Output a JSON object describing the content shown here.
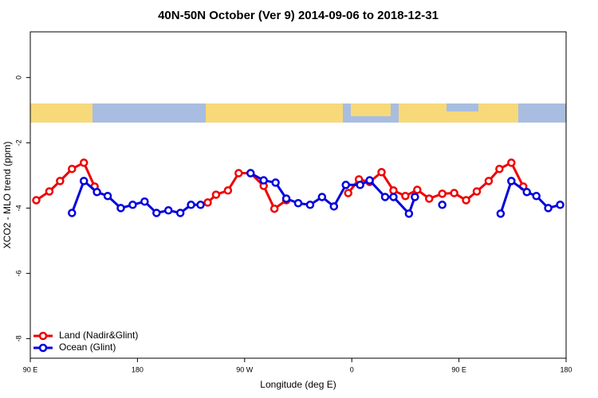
{
  "chart_data": {
    "type": "line",
    "title": "40N-50N October (Ver 9)   2014-09-06 to 2018-12-31",
    "xlabel": "Longitude (deg E)",
    "ylabel": "XCO2 - MLO trend (ppm)",
    "xlim": [
      90,
      540
    ],
    "ylim": [
      -8.6,
      1.4
    ],
    "xticks": [
      {
        "value": 90,
        "label": "90 E"
      },
      180,
      {
        "value": 270,
        "label": "90 W"
      },
      {
        "value": 360,
        "label": "0"
      },
      {
        "value": 450,
        "label": "90 E"
      },
      {
        "value": 540,
        "label": "180"
      }
    ],
    "yticks": [
      0,
      -2,
      -4,
      -6,
      -8
    ],
    "legend": "bottom-left",
    "series": [
      {
        "name": "Land (Nadir&Glint)",
        "color": "#ee0000",
        "x": [
          95,
          106,
          115,
          125,
          135,
          144,
          null,
          239,
          246,
          256,
          265,
          275,
          286,
          295,
          305,
          null,
          357,
          366,
          375,
          385,
          395,
          405,
          415,
          425,
          436,
          446,
          456,
          465,
          475,
          484,
          494,
          504
        ],
        "values": [
          -3.76,
          -3.49,
          -3.17,
          -2.8,
          -2.61,
          -3.34,
          null,
          -3.83,
          -3.59,
          -3.46,
          -2.93,
          -2.93,
          -3.32,
          -4.02,
          -3.76,
          null,
          -3.54,
          -3.12,
          -3.2,
          -2.9,
          -3.46,
          -3.63,
          -3.44,
          -3.71,
          -3.56,
          -3.54,
          -3.76,
          -3.49,
          -3.17,
          -2.8,
          -2.61,
          -3.34
        ]
      },
      {
        "name": "Ocean (Glint)",
        "color": "#0000dd",
        "x": [
          125,
          135,
          146,
          155,
          166,
          176,
          186,
          196,
          206,
          216,
          225,
          233,
          null,
          275,
          286,
          296,
          305,
          315,
          325,
          335,
          345,
          355,
          367,
          375,
          388,
          395,
          408,
          413,
          null,
          436,
          null,
          485,
          494,
          507,
          515,
          525,
          535
        ],
        "values": [
          -4.15,
          -3.17,
          -3.51,
          -3.63,
          -4.0,
          -3.9,
          -3.8,
          -4.15,
          -4.07,
          -4.15,
          -3.9,
          -3.9,
          null,
          -2.93,
          -3.15,
          -3.22,
          -3.71,
          -3.85,
          -3.9,
          -3.66,
          -3.95,
          -3.29,
          -3.29,
          -3.15,
          -3.66,
          -3.66,
          -4.17,
          -3.66,
          null,
          -3.9,
          null,
          -4.17,
          -3.17,
          -3.51,
          -3.63,
          -4.0,
          -3.9
        ]
      }
    ]
  }
}
